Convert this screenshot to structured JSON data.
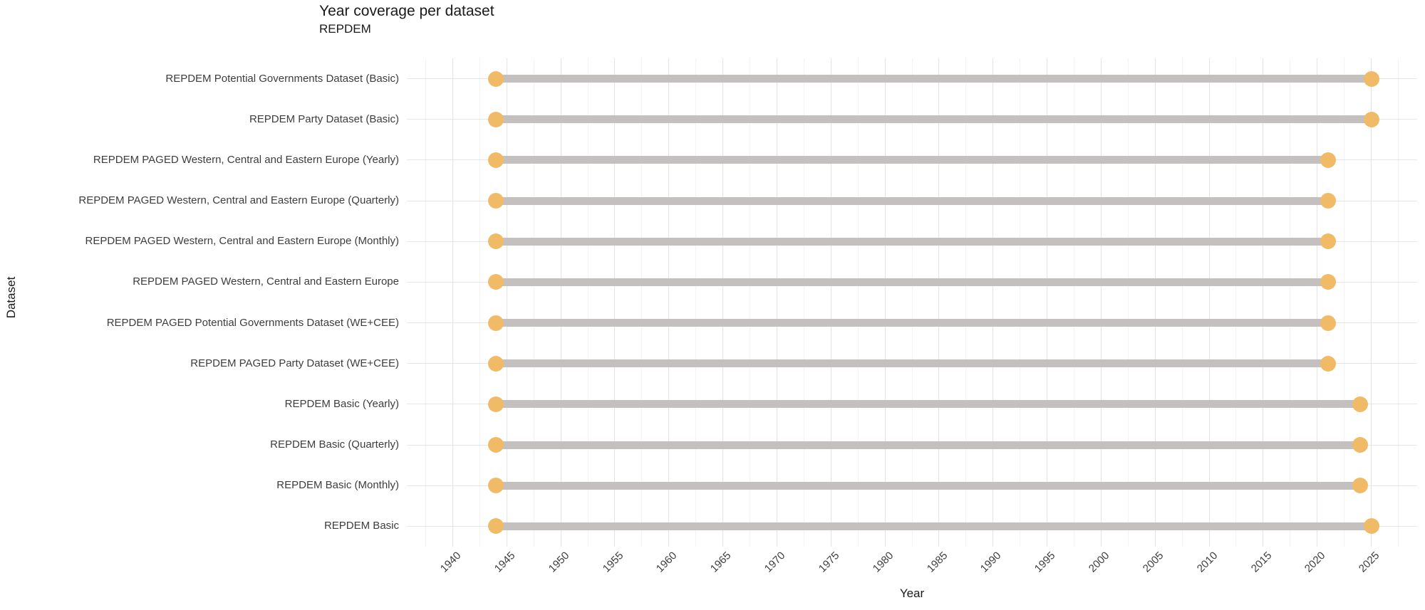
{
  "chart_data": {
    "type": "dumbbell",
    "title": "Year coverage per dataset",
    "subtitle": "REPDEM",
    "xlabel": "Year",
    "ylabel": "Dataset",
    "legend": "none",
    "x_ticks": [
      1940,
      1945,
      1950,
      1955,
      1960,
      1965,
      1970,
      1975,
      1980,
      1985,
      1990,
      1995,
      2000,
      2005,
      2010,
      2015,
      2020,
      2025
    ],
    "x_axis_range": [
      1935.75,
      2029.25
    ],
    "grid": {
      "vertical_major": true,
      "vertical_minor": true,
      "horizontal_per_row": true
    },
    "rows": [
      {
        "label": "REPDEM Potential Governments Dataset (Basic)",
        "start": 1944,
        "end": 2025
      },
      {
        "label": "REPDEM Party Dataset (Basic)",
        "start": 1944,
        "end": 2025
      },
      {
        "label": "REPDEM PAGED Western, Central and Eastern Europe (Yearly)",
        "start": 1944,
        "end": 2021
      },
      {
        "label": "REPDEM PAGED Western, Central and Eastern Europe (Quarterly)",
        "start": 1944,
        "end": 2021
      },
      {
        "label": "REPDEM PAGED Western, Central and Eastern Europe (Monthly)",
        "start": 1944,
        "end": 2021
      },
      {
        "label": "REPDEM PAGED Western, Central and Eastern Europe",
        "start": 1944,
        "end": 2021
      },
      {
        "label": "REPDEM PAGED Potential Governments Dataset (WE+CEE)",
        "start": 1944,
        "end": 2021
      },
      {
        "label": "REPDEM PAGED Party Dataset (WE+CEE)",
        "start": 1944,
        "end": 2021
      },
      {
        "label": "REPDEM Basic (Yearly)",
        "start": 1944,
        "end": 2024
      },
      {
        "label": "REPDEM Basic (Quarterly)",
        "start": 1944,
        "end": 2024
      },
      {
        "label": "REPDEM Basic (Monthly)",
        "start": 1944,
        "end": 2024
      },
      {
        "label": "REPDEM Basic",
        "start": 1944,
        "end": 2025
      }
    ],
    "colors": {
      "bar": "#c5c0c0",
      "dot": "#f1ba66",
      "grid_major": "#e4e4e4",
      "grid_minor": "#f3f3f3",
      "grid_row": "#e6e6e6",
      "text": "#3d3d3d",
      "title_text": "#1a1a1a"
    }
  }
}
